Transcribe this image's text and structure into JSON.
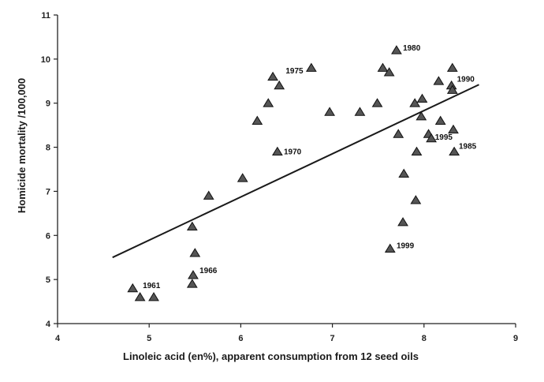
{
  "chart_data": {
    "type": "scatter",
    "xlabel": "Linoleic acid  (en%), apparent consumption from 12 seed oils",
    "ylabel": "Homicide mortality /100,000",
    "xlim": [
      4,
      9
    ],
    "ylim": [
      4,
      11
    ],
    "x_ticks": [
      "4",
      "5",
      "6",
      "7",
      "8",
      "9"
    ],
    "y_ticks": [
      "4",
      "5",
      "6",
      "7",
      "8",
      "9",
      "10",
      "11"
    ],
    "grid": false,
    "marker": "triangle",
    "points": [
      {
        "x": 4.82,
        "y": 4.8
      },
      {
        "x": 4.9,
        "y": 4.6
      },
      {
        "x": 5.05,
        "y": 4.6
      },
      {
        "x": 5.47,
        "y": 4.9
      },
      {
        "x": 5.48,
        "y": 5.1
      },
      {
        "x": 5.5,
        "y": 5.6
      },
      {
        "x": 5.47,
        "y": 6.2
      },
      {
        "x": 5.65,
        "y": 6.9
      },
      {
        "x": 6.02,
        "y": 7.3
      },
      {
        "x": 6.18,
        "y": 8.6
      },
      {
        "x": 6.3,
        "y": 9.0
      },
      {
        "x": 6.35,
        "y": 9.6
      },
      {
        "x": 6.42,
        "y": 9.4
      },
      {
        "x": 6.4,
        "y": 7.9
      },
      {
        "x": 6.77,
        "y": 9.8
      },
      {
        "x": 6.97,
        "y": 8.8
      },
      {
        "x": 7.3,
        "y": 8.8
      },
      {
        "x": 7.49,
        "y": 9.0
      },
      {
        "x": 7.55,
        "y": 9.8
      },
      {
        "x": 7.62,
        "y": 9.7
      },
      {
        "x": 7.7,
        "y": 10.2
      },
      {
        "x": 7.72,
        "y": 8.3
      },
      {
        "x": 7.78,
        "y": 7.4
      },
      {
        "x": 7.77,
        "y": 6.3
      },
      {
        "x": 7.63,
        "y": 5.7
      },
      {
        "x": 7.91,
        "y": 6.8
      },
      {
        "x": 7.92,
        "y": 7.9
      },
      {
        "x": 7.9,
        "y": 9.0
      },
      {
        "x": 7.97,
        "y": 8.7
      },
      {
        "x": 7.98,
        "y": 9.1
      },
      {
        "x": 8.05,
        "y": 8.3
      },
      {
        "x": 8.08,
        "y": 8.2
      },
      {
        "x": 8.16,
        "y": 9.5
      },
      {
        "x": 8.18,
        "y": 8.6
      },
      {
        "x": 8.3,
        "y": 9.4
      },
      {
        "x": 8.31,
        "y": 9.8
      },
      {
        "x": 8.31,
        "y": 9.3
      },
      {
        "x": 8.32,
        "y": 8.4
      },
      {
        "x": 8.33,
        "y": 7.9
      }
    ],
    "trendline": {
      "x": [
        4.6,
        8.6
      ],
      "y": [
        5.5,
        9.42
      ]
    },
    "annotations": [
      {
        "text": "1961",
        "x": 4.93,
        "y": 4.88
      },
      {
        "text": "1966",
        "x": 5.55,
        "y": 5.22
      },
      {
        "text": "1970",
        "x": 6.47,
        "y": 7.91
      },
      {
        "text": "1975",
        "x": 6.49,
        "y": 9.75
      },
      {
        "text": "1980",
        "x": 7.77,
        "y": 10.27
      },
      {
        "text": "1990",
        "x": 8.36,
        "y": 9.56
      },
      {
        "text": "1995",
        "x": 8.12,
        "y": 8.24
      },
      {
        "text": "1985",
        "x": 8.38,
        "y": 8.04
      },
      {
        "text": "1999",
        "x": 7.7,
        "y": 5.78
      }
    ]
  }
}
